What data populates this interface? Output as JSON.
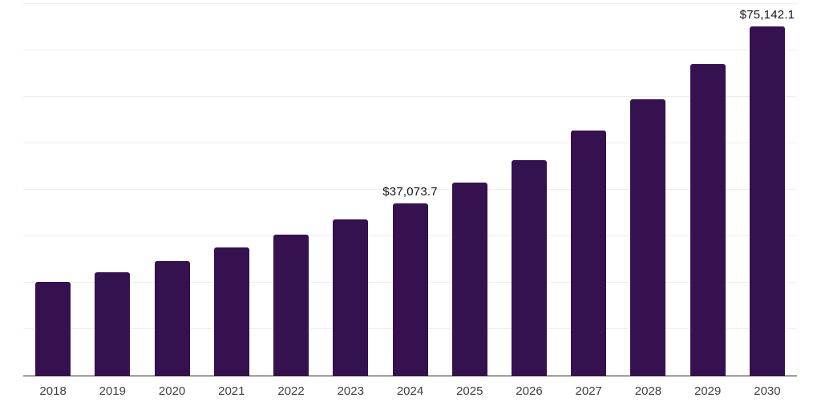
{
  "chart_data": {
    "type": "bar",
    "title": "",
    "xlabel": "",
    "ylabel": "",
    "categories": [
      "2018",
      "2019",
      "2020",
      "2021",
      "2022",
      "2023",
      "2024",
      "2025",
      "2026",
      "2027",
      "2028",
      "2029",
      "2030"
    ],
    "values": [
      20100,
      22300,
      24700,
      27600,
      30400,
      33600,
      37073.7,
      41500,
      46400,
      52800,
      59500,
      67100,
      75142.1
    ],
    "data_labels": [
      {
        "index": 6,
        "text": "$37,073.7"
      },
      {
        "index": 12,
        "text": "$75,142.1"
      }
    ],
    "ylim": [
      0,
      80000
    ],
    "gridline_step": 10000,
    "grid": "horizontal-only",
    "legend": "none",
    "y_tick_labels_visible": false,
    "colors": {
      "bar": "#361150",
      "gridline": "#ededed",
      "axis": "#262626",
      "tick_label": "#404040",
      "data_label": "#141414",
      "background": "#ffffff"
    }
  }
}
